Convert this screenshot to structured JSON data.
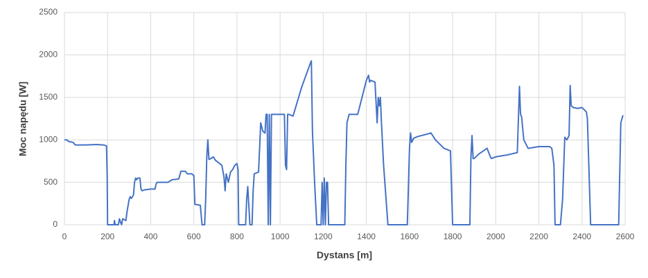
{
  "chart_data": {
    "type": "line",
    "x_label": "Dystans [m]",
    "y_label": "Moc napędu [W]",
    "xlim": [
      0,
      2600
    ],
    "xticks": [
      0,
      200,
      400,
      600,
      800,
      1000,
      1200,
      1400,
      1600,
      1800,
      2000,
      2200,
      2400,
      2600
    ],
    "ylim": [
      0,
      2500
    ],
    "yticks": [
      0,
      500,
      1000,
      1500,
      2000,
      2500
    ],
    "grid": true,
    "x": [
      0,
      10,
      20,
      40,
      50,
      100,
      150,
      180,
      195,
      198,
      200,
      230,
      232,
      235,
      250,
      255,
      260,
      265,
      270,
      285,
      290,
      300,
      305,
      310,
      320,
      325,
      330,
      335,
      340,
      350,
      355,
      360,
      370,
      400,
      420,
      425,
      430,
      480,
      500,
      530,
      540,
      560,
      570,
      590,
      600,
      605,
      630,
      638,
      650,
      655,
      660,
      665,
      670,
      680,
      690,
      700,
      720,
      730,
      740,
      745,
      750,
      760,
      770,
      780,
      790,
      800,
      805,
      808,
      840,
      845,
      850,
      860,
      870,
      875,
      880,
      900,
      905,
      910,
      915,
      920,
      930,
      935,
      940,
      945,
      950,
      955,
      960,
      1000,
      1020,
      1025,
      1030,
      1035,
      1040,
      1060,
      1100,
      1140,
      1145,
      1150,
      1160,
      1170,
      1190,
      1195,
      1200,
      1205,
      1210,
      1215,
      1220,
      1225,
      1300,
      1305,
      1310,
      1320,
      1360,
      1380,
      1400,
      1410,
      1415,
      1420,
      1440,
      1450,
      1455,
      1460,
      1465,
      1470,
      1480,
      1500,
      1590,
      1600,
      1605,
      1610,
      1620,
      1640,
      1700,
      1720,
      1740,
      1760,
      1780,
      1790,
      1800,
      1880,
      1885,
      1890,
      1895,
      1900,
      1920,
      1960,
      1975,
      1980,
      2000,
      2050,
      2100,
      2110,
      2115,
      2120,
      2130,
      2150,
      2200,
      2250,
      2260,
      2270,
      2275,
      2300,
      2310,
      2320,
      2330,
      2340,
      2345,
      2350,
      2360,
      2380,
      2400,
      2420,
      2425,
      2440,
      2570,
      2580,
      2590
    ],
    "series": [
      {
        "color": "#4472c4",
        "values": [
          1000,
          1000,
          980,
          970,
          940,
          940,
          945,
          940,
          930,
          600,
          0,
          0,
          50,
          0,
          0,
          70,
          30,
          0,
          70,
          50,
          150,
          300,
          330,
          310,
          350,
          500,
          550,
          530,
          550,
          550,
          420,
          400,
          410,
          420,
          420,
          480,
          500,
          500,
          530,
          540,
          630,
          630,
          600,
          600,
          580,
          240,
          230,
          0,
          0,
          300,
          800,
          1000,
          770,
          780,
          800,
          760,
          720,
          700,
          560,
          400,
          600,
          500,
          620,
          650,
          700,
          720,
          650,
          0,
          0,
          300,
          450,
          0,
          0,
          400,
          600,
          620,
          900,
          1200,
          1150,
          1100,
          1080,
          1300,
          1300,
          0,
          1300,
          0,
          1300,
          1300,
          1300,
          700,
          650,
          1300,
          1300,
          1280,
          1620,
          1900,
          1930,
          1100,
          500,
          0,
          0,
          500,
          0,
          550,
          0,
          500,
          500,
          0,
          0,
          700,
          1200,
          1300,
          1300,
          1500,
          1700,
          1760,
          1680,
          1700,
          1680,
          1200,
          1500,
          1400,
          1500,
          1200,
          700,
          0,
          0,
          900,
          1080,
          970,
          1020,
          1040,
          1080,
          1000,
          950,
          900,
          880,
          870,
          0,
          0,
          800,
          1050,
          780,
          780,
          830,
          900,
          800,
          780,
          800,
          820,
          850,
          1630,
          1300,
          1270,
          1000,
          900,
          920,
          920,
          900,
          700,
          0,
          0,
          300,
          1030,
          1000,
          1050,
          1640,
          1400,
          1380,
          1370,
          1380,
          1330,
          1250,
          0,
          0,
          1200,
          1290
        ]
      }
    ]
  }
}
